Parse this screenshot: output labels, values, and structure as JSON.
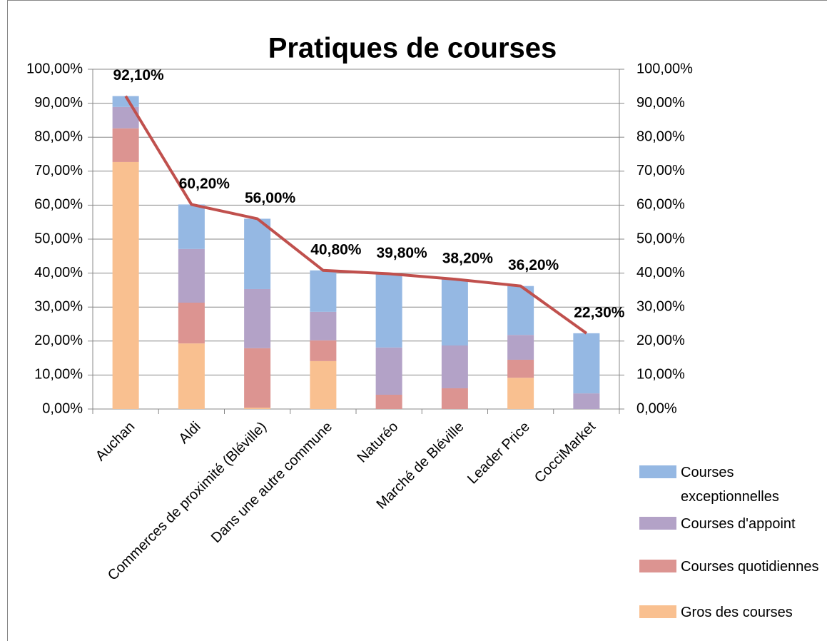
{
  "chart_data": {
    "type": "stacked-bar-line",
    "title": "Pratiques de courses",
    "categories": [
      "Auchan",
      "Aldi",
      "Commerces de proximité (Bléville)",
      "Dans une autre commune",
      "Naturéo",
      "Marché de Bléville",
      "Leader Price",
      "CocciMarket"
    ],
    "series": [
      {
        "name": "Gros des courses",
        "color": "#f9c090",
        "values": [
          72.7,
          19.3,
          0.4,
          14.1,
          0,
          0,
          9.2,
          0
        ]
      },
      {
        "name": "Courses quotidiennes",
        "color": "#dc9491",
        "values": [
          9.9,
          12.0,
          17.5,
          6.1,
          4.2,
          6.1,
          5.3,
          0
        ]
      },
      {
        "name": "Courses d'appoint",
        "color": "#b3a2c7",
        "values": [
          6.3,
          15.8,
          17.4,
          8.4,
          13.9,
          12.6,
          7.3,
          4.6
        ]
      },
      {
        "name": "Courses exceptionnelles",
        "color": "#95b8e3",
        "values": [
          3.2,
          13.1,
          20.7,
          12.2,
          21.7,
          19.5,
          14.4,
          17.7
        ]
      }
    ],
    "line": {
      "color": "#c0504d",
      "label_color": "#c00000",
      "values": [
        92.1,
        60.2,
        56.0,
        40.8,
        39.8,
        38.2,
        36.2,
        22.3
      ],
      "value_labels": [
        "92,10%",
        "60,20%",
        "56,00%",
        "40,80%",
        "39,80%",
        "38,20%",
        "36,20%",
        "22,30%"
      ]
    },
    "ylim": [
      0,
      100
    ],
    "yticks": [
      {
        "value": 0,
        "label": "0,00%"
      },
      {
        "value": 10,
        "label": "10,00%"
      },
      {
        "value": 20,
        "label": "20,00%"
      },
      {
        "value": 30,
        "label": "30,00%"
      },
      {
        "value": 40,
        "label": "40,00%"
      },
      {
        "value": 50,
        "label": "50,00%"
      },
      {
        "value": 60,
        "label": "60,00%"
      },
      {
        "value": 70,
        "label": "70,00%"
      },
      {
        "value": 80,
        "label": "80,00%"
      },
      {
        "value": 90,
        "label": "90,00%"
      },
      {
        "value": 100,
        "label": "100,00%"
      }
    ],
    "y2lim": [
      0,
      100
    ],
    "y2ticks": [
      {
        "value": 0,
        "label": "0,00%"
      },
      {
        "value": 10,
        "label": "10,00%"
      },
      {
        "value": 20,
        "label": "20,00%"
      },
      {
        "value": 30,
        "label": "30,00%"
      },
      {
        "value": 40,
        "label": "40,00%"
      },
      {
        "value": 50,
        "label": "50,00%"
      },
      {
        "value": 60,
        "label": "60,00%"
      },
      {
        "value": 70,
        "label": "70,00%"
      },
      {
        "value": 80,
        "label": "80,00%"
      },
      {
        "value": 90,
        "label": "90,00%"
      },
      {
        "value": 100,
        "label": "100,00%"
      }
    ],
    "grid": true,
    "legend": "bottom-right"
  }
}
